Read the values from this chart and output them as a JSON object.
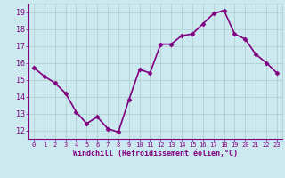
{
  "x": [
    0,
    1,
    2,
    3,
    4,
    5,
    6,
    7,
    8,
    9,
    10,
    11,
    12,
    13,
    14,
    15,
    16,
    17,
    18,
    19,
    20,
    21,
    22,
    23
  ],
  "y": [
    15.7,
    15.2,
    14.8,
    14.2,
    13.1,
    12.4,
    12.8,
    12.1,
    11.9,
    13.8,
    15.6,
    15.4,
    17.1,
    17.1,
    17.6,
    17.7,
    18.3,
    18.9,
    19.1,
    17.7,
    17.4,
    16.5,
    16.0,
    15.4
  ],
  "line_color": "#800080",
  "marker": "D",
  "marker_size": 2.5,
  "bg_color": "#cce9f0",
  "grid_color": "#aacccc",
  "xlabel": "Windchill (Refroidissement éolien,°C)",
  "ylim": [
    11.5,
    19.5
  ],
  "xlim": [
    -0.5,
    23.5
  ],
  "yticks": [
    12,
    13,
    14,
    15,
    16,
    17,
    18,
    19
  ],
  "xticks": [
    0,
    1,
    2,
    3,
    4,
    5,
    6,
    7,
    8,
    9,
    10,
    11,
    12,
    13,
    14,
    15,
    16,
    17,
    18,
    19,
    20,
    21,
    22,
    23
  ],
  "tick_color": "#800080",
  "label_color": "#800080",
  "linewidth": 1.2
}
